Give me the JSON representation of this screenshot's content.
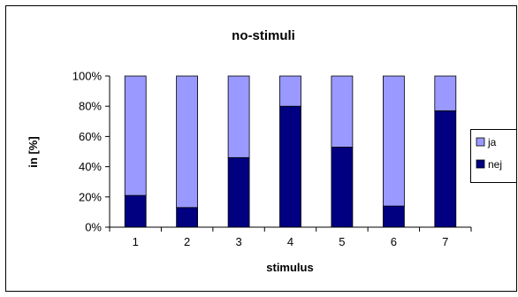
{
  "chart_data": {
    "type": "bar",
    "stacked": true,
    "percent": true,
    "title": "no-stimuli",
    "xlabel": "stimulus",
    "ylabel": "in [%]",
    "categories": [
      "1",
      "2",
      "3",
      "4",
      "5",
      "6",
      "7"
    ],
    "series": [
      {
        "name": "ja",
        "color": "#9999ff",
        "values": [
          79,
          87,
          54,
          20,
          47,
          86,
          23
        ]
      },
      {
        "name": "nej",
        "color": "#000080",
        "values": [
          21,
          13,
          46,
          80,
          53,
          14,
          77
        ]
      }
    ],
    "ylim": [
      0,
      100
    ],
    "yticks": [
      0,
      20,
      40,
      60,
      80,
      100
    ],
    "ytick_labels": [
      "0%",
      "20%",
      "40%",
      "60%",
      "80%",
      "100%"
    ],
    "grid": false,
    "legend_position": "right"
  }
}
